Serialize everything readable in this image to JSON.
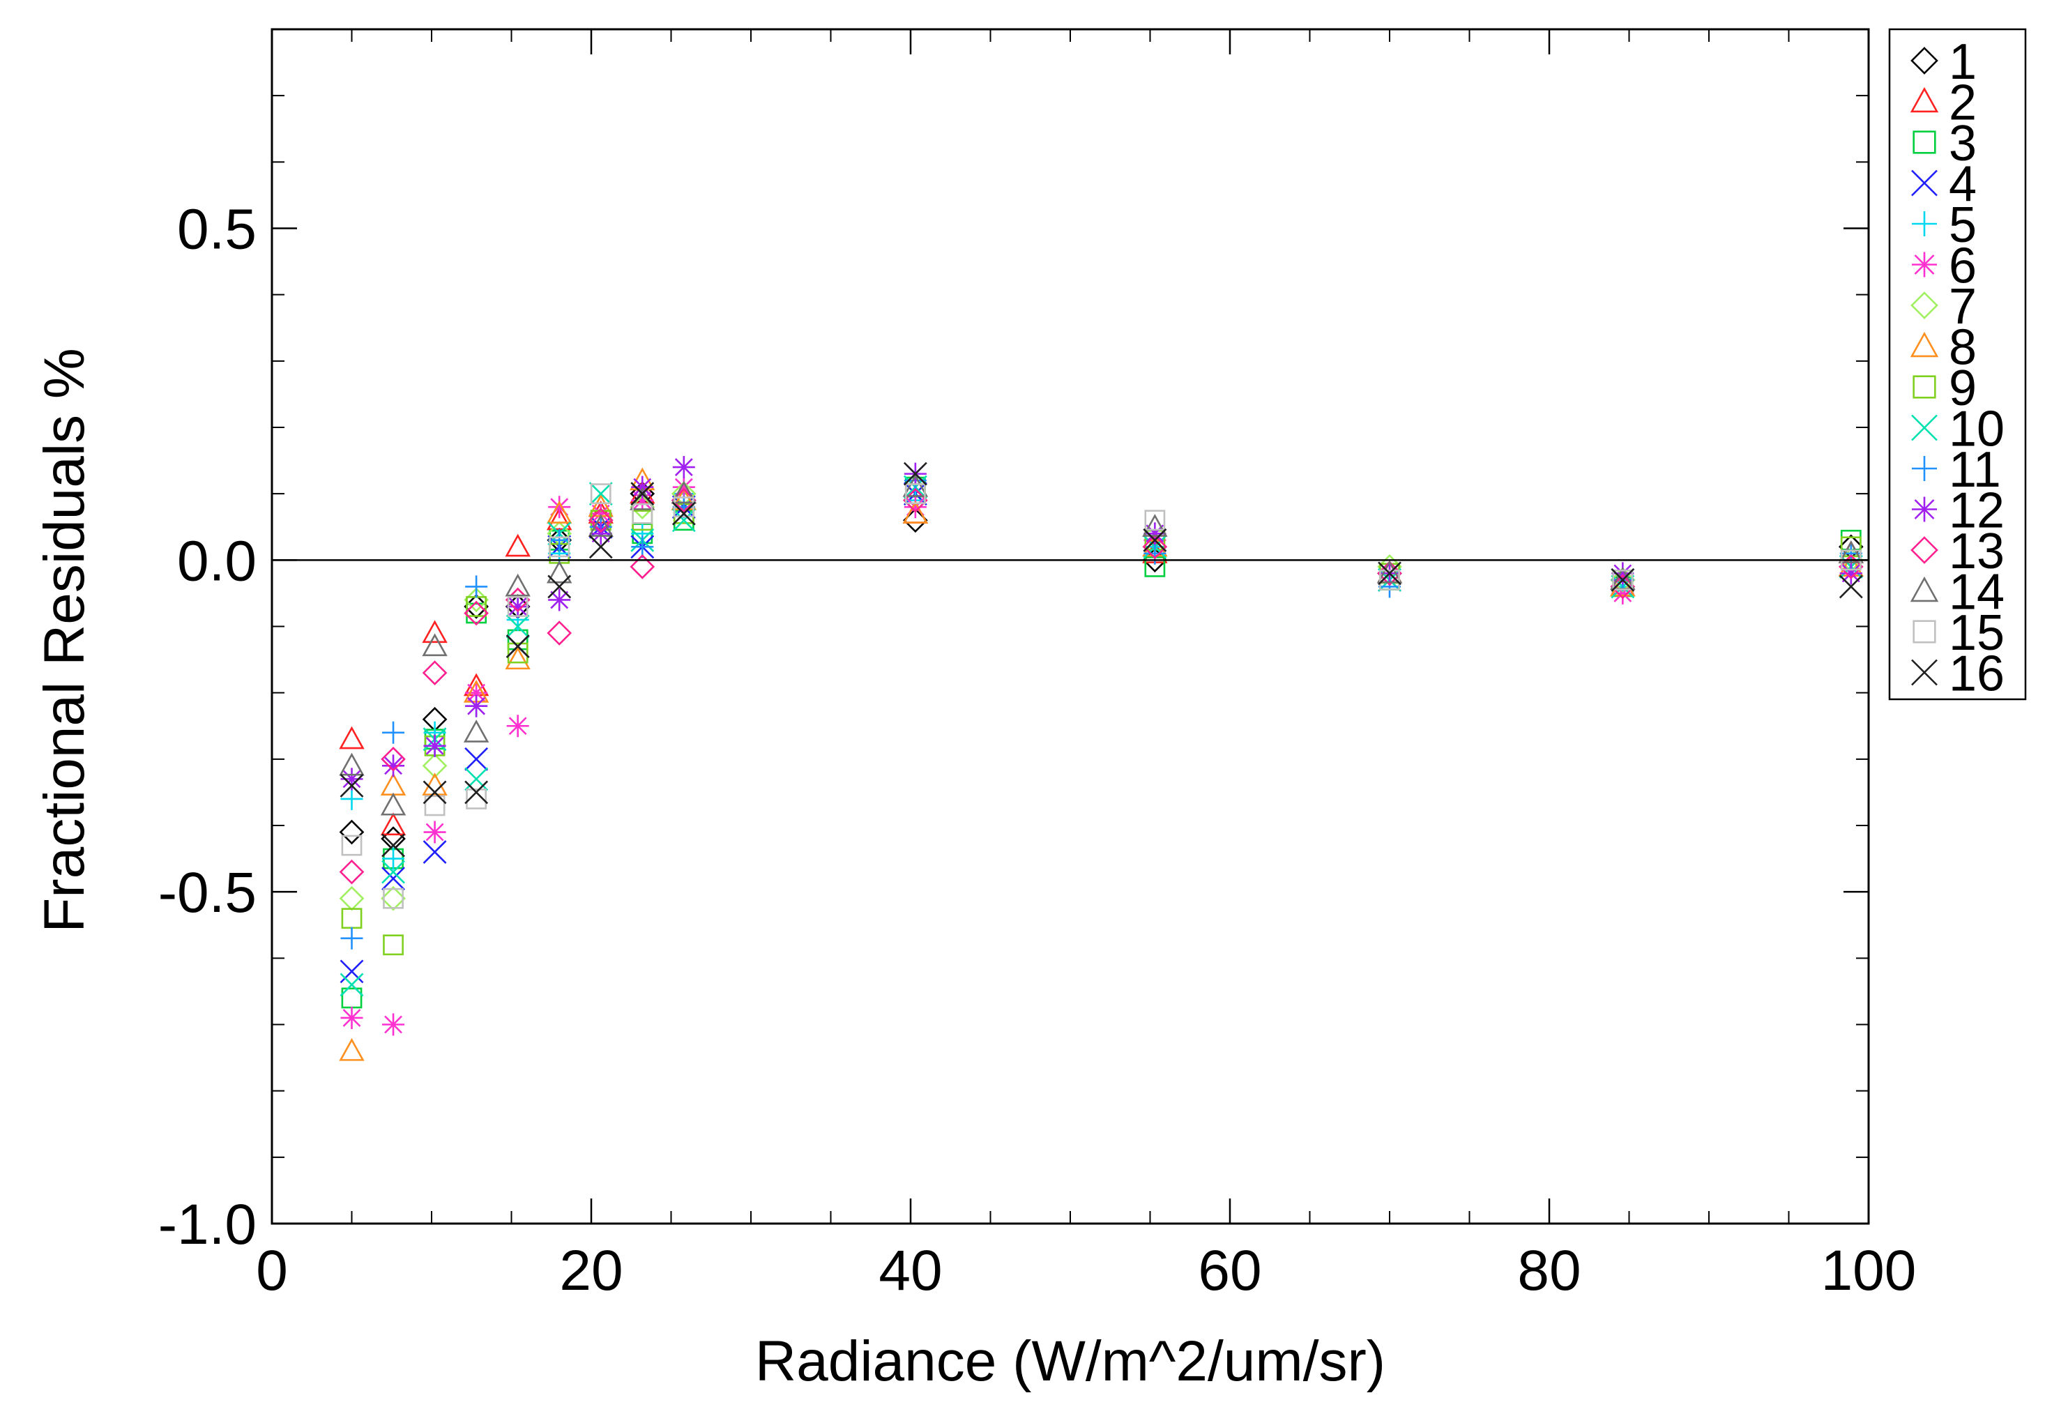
{
  "chart_data": {
    "type": "scatter",
    "title": "",
    "xlabel": "Radiance (W/m^2/um/sr)",
    "ylabel": "Fractional Residuals %",
    "xlim": [
      0,
      100
    ],
    "ylim": [
      -1.0,
      0.8
    ],
    "x_ticks": [
      0,
      20,
      40,
      60,
      80,
      100
    ],
    "x_tick_labels": [
      "0",
      "20",
      "40",
      "60",
      "80",
      "100"
    ],
    "y_ticks": [
      -1.0,
      -0.5,
      0.0,
      0.5
    ],
    "y_tick_labels": [
      "-1.0",
      "-0.5",
      "0.0",
      "0.5"
    ],
    "reference_line_y": 0.0,
    "legend_position": "right",
    "x": [
      5.0,
      7.6,
      10.2,
      12.8,
      15.4,
      18.0,
      20.6,
      23.2,
      25.8,
      40.3,
      55.3,
      70.0,
      84.6,
      98.9
    ],
    "series": [
      {
        "name": "1",
        "marker": "diamond",
        "color": "#000000",
        "values": [
          -0.41,
          -0.42,
          -0.24,
          -0.07,
          -0.07,
          0.03,
          0.06,
          0.1,
          0.09,
          0.06,
          0.0,
          -0.02,
          -0.03,
          0.02
        ]
      },
      {
        "name": "2",
        "marker": "triangle",
        "color": "#ff2020",
        "values": [
          -0.27,
          -0.4,
          -0.11,
          -0.19,
          0.02,
          0.06,
          0.07,
          0.1,
          0.1,
          0.07,
          0.01,
          -0.02,
          -0.04,
          0.01
        ]
      },
      {
        "name": "3",
        "marker": "square",
        "color": "#00d040",
        "values": [
          -0.66,
          -0.45,
          -0.27,
          -0.08,
          -0.12,
          0.03,
          0.06,
          0.04,
          0.06,
          0.11,
          -0.01,
          -0.03,
          -0.04,
          0.03
        ]
      },
      {
        "name": "4",
        "marker": "x",
        "color": "#2020ff",
        "values": [
          -0.62,
          -0.48,
          -0.44,
          -0.3,
          -0.13,
          0.02,
          0.05,
          0.02,
          0.08,
          0.1,
          0.03,
          -0.03,
          -0.03,
          -0.01
        ]
      },
      {
        "name": "5",
        "marker": "plus",
        "color": "#00d8f0",
        "values": [
          -0.36,
          -0.45,
          -0.26,
          -0.22,
          -0.09,
          0.01,
          0.07,
          0.04,
          0.1,
          0.09,
          0.02,
          -0.02,
          -0.04,
          0.0
        ]
      },
      {
        "name": "6",
        "marker": "asterisk",
        "color": "#ff30d0",
        "values": [
          -0.69,
          -0.7,
          -0.41,
          -0.2,
          -0.25,
          0.08,
          0.07,
          0.09,
          0.11,
          0.08,
          0.03,
          -0.02,
          -0.05,
          -0.02
        ]
      },
      {
        "name": "7",
        "marker": "diamond",
        "color": "#a0f060",
        "values": [
          -0.51,
          -0.51,
          -0.31,
          -0.06,
          -0.06,
          0.04,
          0.06,
          0.08,
          0.1,
          0.09,
          0.02,
          -0.01,
          -0.03,
          0.0
        ]
      },
      {
        "name": "8",
        "marker": "triangle",
        "color": "#ff9020",
        "values": [
          -0.74,
          -0.34,
          -0.34,
          -0.2,
          -0.15,
          0.07,
          0.08,
          0.12,
          0.09,
          0.07,
          0.02,
          -0.02,
          -0.04,
          -0.01
        ]
      },
      {
        "name": "9",
        "marker": "square",
        "color": "#80d020",
        "values": [
          -0.54,
          -0.58,
          -0.28,
          -0.07,
          -0.14,
          0.01,
          0.06,
          0.06,
          0.07,
          0.1,
          0.03,
          -0.02,
          -0.03,
          0.02
        ]
      },
      {
        "name": "10",
        "marker": "x",
        "color": "#00e0b0",
        "values": [
          -0.64,
          -0.47,
          -0.27,
          -0.33,
          -0.1,
          0.04,
          0.1,
          0.03,
          0.06,
          0.11,
          0.02,
          -0.03,
          -0.04,
          -0.01
        ]
      },
      {
        "name": "11",
        "marker": "plus",
        "color": "#2090ff",
        "values": [
          -0.57,
          -0.26,
          -0.28,
          -0.04,
          -0.07,
          0.03,
          0.05,
          0.02,
          0.08,
          0.12,
          0.01,
          -0.04,
          -0.03,
          0.01
        ]
      },
      {
        "name": "12",
        "marker": "asterisk",
        "color": "#a020f0",
        "values": [
          -0.33,
          -0.31,
          -0.28,
          -0.22,
          -0.07,
          -0.06,
          0.04,
          0.11,
          0.14,
          0.13,
          0.04,
          -0.02,
          -0.02,
          -0.02
        ]
      },
      {
        "name": "13",
        "marker": "diamond",
        "color": "#ff2090",
        "values": [
          -0.47,
          -0.3,
          -0.17,
          -0.08,
          -0.06,
          -0.11,
          0.06,
          -0.01,
          0.09,
          0.09,
          0.02,
          -0.02,
          -0.04,
          -0.01
        ]
      },
      {
        "name": "14",
        "marker": "triangle",
        "color": "#707070",
        "values": [
          -0.31,
          -0.37,
          -0.13,
          -0.26,
          -0.04,
          -0.02,
          0.05,
          0.09,
          0.1,
          0.11,
          0.05,
          -0.02,
          -0.03,
          0.01
        ]
      },
      {
        "name": "15",
        "marker": "square",
        "color": "#c0c0c0",
        "values": [
          -0.43,
          -0.51,
          -0.37,
          -0.36,
          -0.07,
          0.02,
          0.1,
          0.07,
          0.08,
          0.1,
          0.06,
          -0.03,
          -0.03,
          0.0
        ]
      },
      {
        "name": "16",
        "marker": "x",
        "color": "#202020",
        "values": [
          -0.34,
          -0.43,
          -0.35,
          -0.35,
          -0.13,
          -0.04,
          0.02,
          0.1,
          0.07,
          0.13,
          0.03,
          -0.02,
          -0.03,
          -0.04
        ]
      }
    ]
  }
}
